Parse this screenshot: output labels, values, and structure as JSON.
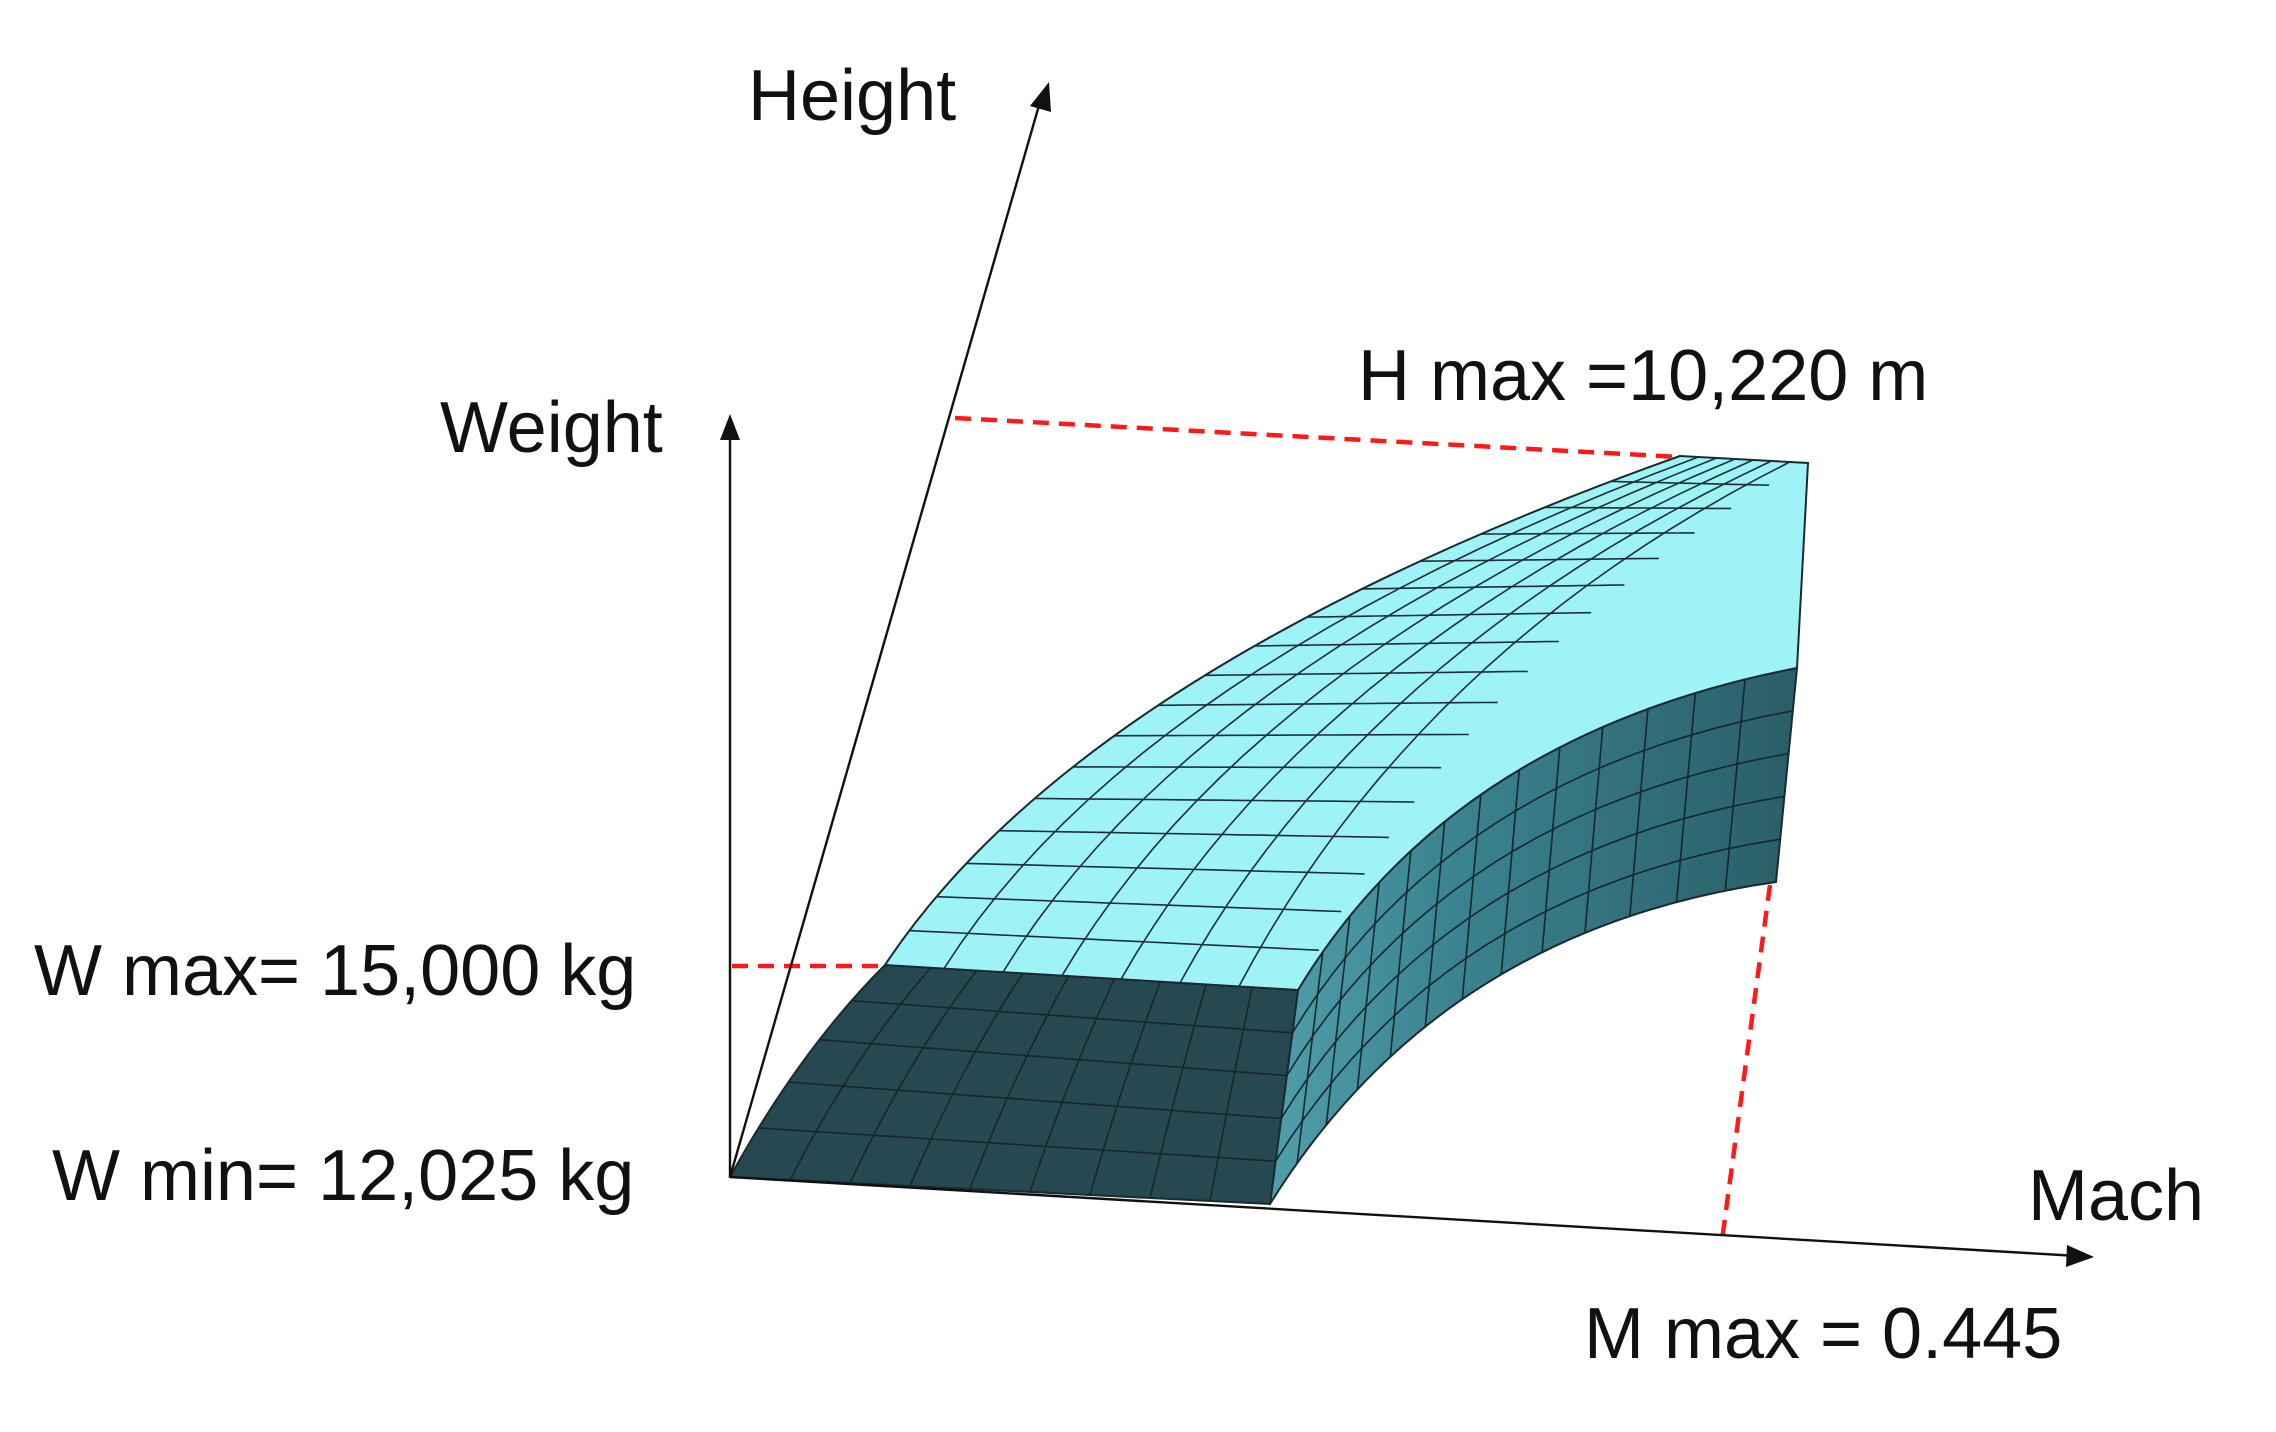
{
  "axes": {
    "height": "Height",
    "weight": "Weight",
    "mach": "Mach"
  },
  "annotations": {
    "h_max": "H max =10,220 m",
    "w_max": "W max= 15,000 kg",
    "w_min": "W min= 12,025 kg",
    "m_max": "M max = 0.445"
  },
  "colors": {
    "top_surface": "#9ef3f6",
    "front_face": "#264850",
    "side_face": "#3f8a96",
    "guide_lines": "#ff1a1a",
    "axes": "#111111"
  }
}
